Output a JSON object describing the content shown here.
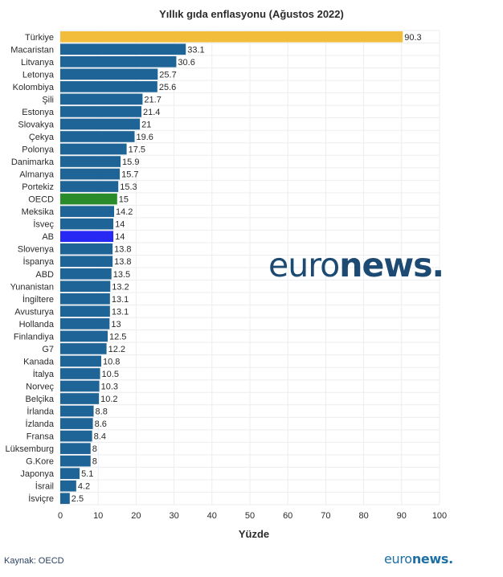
{
  "source": "Kaynak: OECD",
  "brand": {
    "light": "euro",
    "bold": "news",
    "dot": "."
  },
  "chart_data": {
    "type": "bar",
    "orientation": "horizontal",
    "title": "Yıllık gıda enflasyonu (Ağustos 2022)",
    "xlabel": "Yüzde",
    "ylabel": "",
    "xlim": [
      0,
      100
    ],
    "xticks": [
      0,
      10,
      20,
      30,
      40,
      50,
      60,
      70,
      80,
      90,
      100
    ],
    "grid": true,
    "categories": [
      "Türkiye",
      "Macaristan",
      "Litvanya",
      "Letonya",
      "Kolombiya",
      "Şili",
      "Estonya",
      "Slovakya",
      "Çekya",
      "Polonya",
      "Danimarka",
      "Almanya",
      "Portekiz",
      "OECD",
      "Meksika",
      "İsveç",
      "AB",
      "Slovenya",
      "İspanya",
      "ABD",
      "Yunanistan",
      "İngiltere",
      "Avusturya",
      "Hollanda",
      "Finlandiya",
      "G7",
      "Kanada",
      "İtalya",
      "Norveç",
      "Belçika",
      "İrlanda",
      "İzlanda",
      "Fransa",
      "Lüksemburg",
      "G.Kore",
      "Japonya",
      "İsrail",
      "İsviçre"
    ],
    "values": [
      90.3,
      33.1,
      30.6,
      25.7,
      25.6,
      21.7,
      21.4,
      21,
      19.6,
      17.5,
      15.9,
      15.7,
      15.3,
      15,
      14.2,
      14,
      14,
      13.8,
      13.8,
      13.5,
      13.2,
      13.1,
      13.1,
      13,
      12.5,
      12.2,
      10.8,
      10.5,
      10.3,
      10.2,
      8.8,
      8.6,
      8.4,
      8,
      8,
      5.1,
      4.2,
      2.5
    ],
    "colors": {
      "default": "#1f6496",
      "Türkiye": "#f2bd3a",
      "OECD": "#2a8b2a",
      "AB": "#2828f5"
    }
  }
}
